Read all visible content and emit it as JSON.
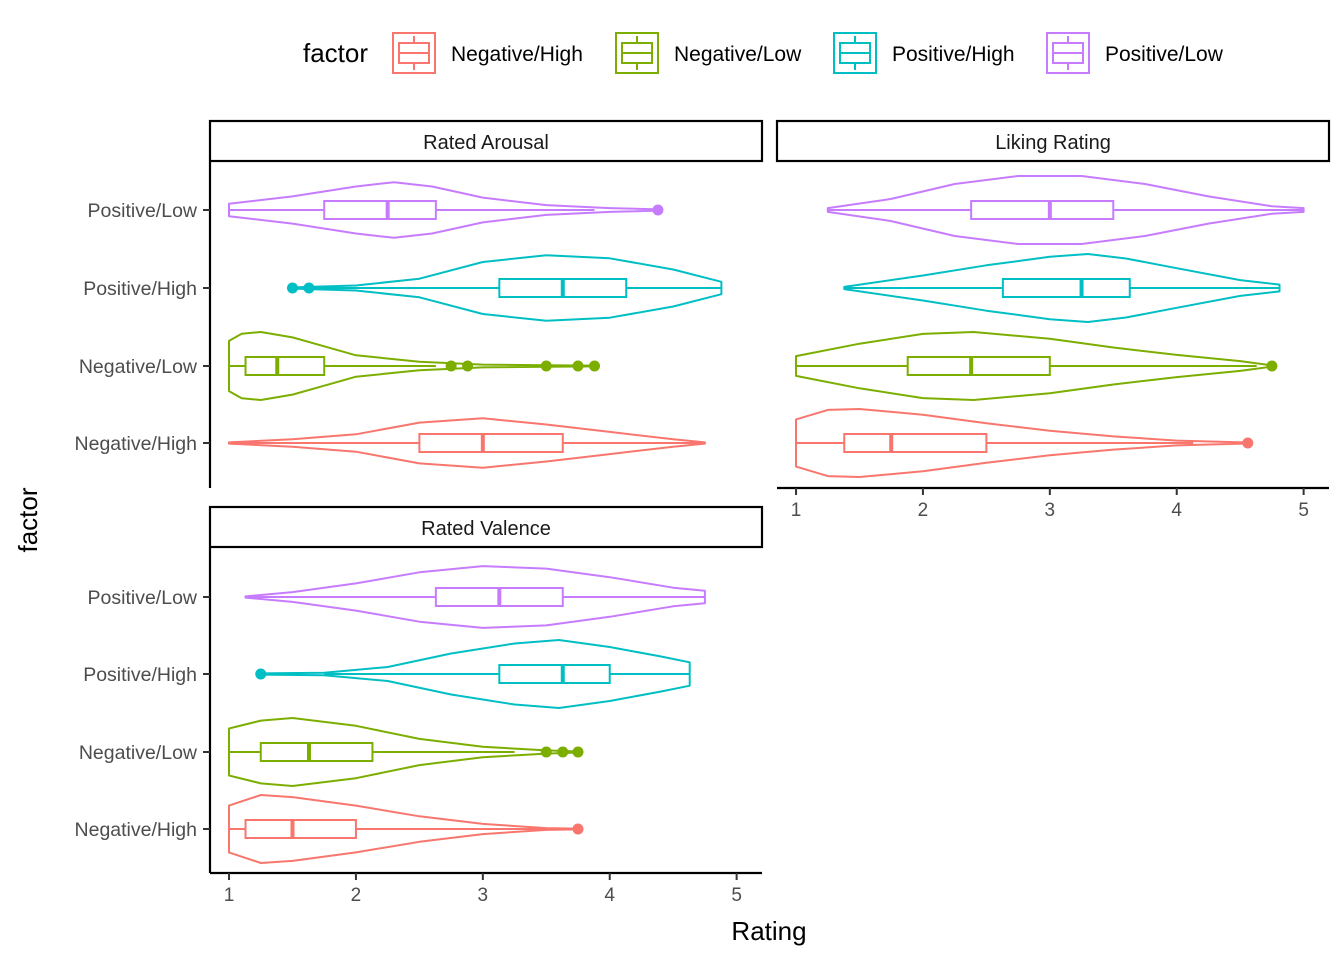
{
  "chart_data": {
    "type": "violin",
    "xlabel": "Rating",
    "ylabel": "factor",
    "xlim": [
      0.85,
      5.2
    ],
    "xticks": [
      1,
      2,
      3,
      4,
      5
    ],
    "categories": [
      "Negative/High",
      "Negative/Low",
      "Positive/High",
      "Positive/Low"
    ],
    "legend": {
      "title": "factor",
      "position": "top",
      "entries": [
        {
          "label": "Negative/High",
          "color": "#F8766D"
        },
        {
          "label": "Negative/Low",
          "color": "#7CAE00"
        },
        {
          "label": "Positive/High",
          "color": "#00BFC4"
        },
        {
          "label": "Positive/Low",
          "color": "#C77CFF"
        }
      ]
    },
    "panels": [
      {
        "title": "Rated Arousal",
        "series": [
          {
            "category": "Negative/High",
            "min": 1.0,
            "q1": 2.5,
            "median": 3.0,
            "q3": 3.63,
            "max": 4.75,
            "outliers": [],
            "density": [
              [
                1.0,
                0.01
              ],
              [
                1.5,
                0.06
              ],
              [
                2.0,
                0.14
              ],
              [
                2.5,
                0.33
              ],
              [
                3.0,
                0.4
              ],
              [
                3.5,
                0.3
              ],
              [
                4.0,
                0.18
              ],
              [
                4.5,
                0.06
              ],
              [
                4.75,
                0.01
              ]
            ]
          },
          {
            "category": "Negative/Low",
            "min": 1.0,
            "q1": 1.13,
            "median": 1.38,
            "q3": 1.75,
            "max": 2.63,
            "outliers": [
              2.75,
              2.88,
              3.5,
              3.75,
              3.88
            ],
            "density": [
              [
                1.0,
                0.7
              ],
              [
                1.1,
                0.9
              ],
              [
                1.25,
                0.95
              ],
              [
                1.5,
                0.8
              ],
              [
                1.75,
                0.55
              ],
              [
                2.0,
                0.3
              ],
              [
                2.5,
                0.12
              ],
              [
                3.0,
                0.04
              ],
              [
                3.5,
                0.02
              ],
              [
                3.88,
                0.01
              ]
            ]
          },
          {
            "category": "Positive/High",
            "min": 1.5,
            "q1": 3.13,
            "median": 3.63,
            "q3": 4.13,
            "max": 4.88,
            "outliers": [
              1.5,
              1.63
            ],
            "density": [
              [
                1.5,
                0.01
              ],
              [
                2.0,
                0.04
              ],
              [
                2.5,
                0.15
              ],
              [
                3.0,
                0.42
              ],
              [
                3.5,
                0.53
              ],
              [
                4.0,
                0.48
              ],
              [
                4.5,
                0.3
              ],
              [
                4.88,
                0.1
              ]
            ]
          },
          {
            "category": "Positive/Low",
            "min": 1.0,
            "q1": 1.75,
            "median": 2.25,
            "q3": 2.63,
            "max": 3.88,
            "outliers": [
              4.38
            ],
            "density": [
              [
                1.0,
                0.1
              ],
              [
                1.5,
                0.22
              ],
              [
                2.0,
                0.38
              ],
              [
                2.3,
                0.45
              ],
              [
                2.6,
                0.38
              ],
              [
                3.0,
                0.2
              ],
              [
                3.5,
                0.08
              ],
              [
                4.0,
                0.03
              ],
              [
                4.38,
                0.01
              ]
            ]
          }
        ]
      },
      {
        "title": "Liking Rating",
        "series": [
          {
            "category": "Negative/High",
            "min": 1.0,
            "q1": 1.38,
            "median": 1.75,
            "q3": 2.5,
            "max": 4.13,
            "outliers": [
              4.56
            ],
            "density": [
              [
                1.0,
                0.5
              ],
              [
                1.25,
                0.7
              ],
              [
                1.5,
                0.72
              ],
              [
                2.0,
                0.6
              ],
              [
                2.5,
                0.42
              ],
              [
                3.0,
                0.26
              ],
              [
                3.5,
                0.14
              ],
              [
                4.0,
                0.05
              ],
              [
                4.56,
                0.01
              ]
            ]
          },
          {
            "category": "Negative/Low",
            "min": 1.0,
            "q1": 1.88,
            "median": 2.38,
            "q3": 3.0,
            "max": 4.63,
            "outliers": [
              4.75
            ],
            "density": [
              [
                1.0,
                0.16
              ],
              [
                1.5,
                0.36
              ],
              [
                2.0,
                0.52
              ],
              [
                2.4,
                0.55
              ],
              [
                3.0,
                0.44
              ],
              [
                3.5,
                0.3
              ],
              [
                4.0,
                0.18
              ],
              [
                4.5,
                0.08
              ],
              [
                4.75,
                0.01
              ]
            ]
          },
          {
            "category": "Positive/High",
            "min": 1.38,
            "q1": 2.63,
            "median": 3.25,
            "q3": 3.63,
            "max": 4.81,
            "outliers": [],
            "density": [
              [
                1.38,
                0.02
              ],
              [
                2.0,
                0.22
              ],
              [
                2.5,
                0.4
              ],
              [
                3.0,
                0.55
              ],
              [
                3.3,
                0.6
              ],
              [
                3.6,
                0.52
              ],
              [
                4.0,
                0.35
              ],
              [
                4.5,
                0.14
              ],
              [
                4.81,
                0.06
              ]
            ]
          },
          {
            "category": "Positive/Low",
            "min": 1.25,
            "q1": 2.38,
            "median": 3.0,
            "q3": 3.5,
            "max": 5.0,
            "outliers": [],
            "density": [
              [
                1.25,
                0.03
              ],
              [
                1.75,
                0.18
              ],
              [
                2.25,
                0.42
              ],
              [
                2.75,
                0.55
              ],
              [
                3.25,
                0.55
              ],
              [
                3.75,
                0.42
              ],
              [
                4.25,
                0.22
              ],
              [
                4.75,
                0.06
              ],
              [
                5.0,
                0.03
              ]
            ]
          }
        ]
      },
      {
        "title": "Rated Valence",
        "series": [
          {
            "category": "Negative/High",
            "min": 1.0,
            "q1": 1.13,
            "median": 1.5,
            "q3": 2.0,
            "max": 3.5,
            "outliers": [
              3.75
            ],
            "density": [
              [
                1.0,
                0.55
              ],
              [
                1.25,
                0.8
              ],
              [
                1.5,
                0.75
              ],
              [
                2.0,
                0.55
              ],
              [
                2.5,
                0.3
              ],
              [
                3.0,
                0.12
              ],
              [
                3.5,
                0.02
              ],
              [
                3.75,
                0.01
              ]
            ]
          },
          {
            "category": "Negative/Low",
            "min": 1.0,
            "q1": 1.25,
            "median": 1.63,
            "q3": 2.13,
            "max": 3.25,
            "outliers": [
              3.5,
              3.63,
              3.75
            ],
            "density": [
              [
                1.0,
                0.45
              ],
              [
                1.25,
                0.6
              ],
              [
                1.5,
                0.65
              ],
              [
                2.0,
                0.5
              ],
              [
                2.5,
                0.25
              ],
              [
                3.0,
                0.1
              ],
              [
                3.5,
                0.03
              ],
              [
                3.75,
                0.01
              ]
            ]
          },
          {
            "category": "Positive/High",
            "min": 1.75,
            "q1": 3.13,
            "median": 3.63,
            "q3": 4.0,
            "max": 4.63,
            "outliers": [
              1.25
            ],
            "density": [
              [
                1.25,
                0.01
              ],
              [
                1.75,
                0.02
              ],
              [
                2.25,
                0.12
              ],
              [
                2.75,
                0.35
              ],
              [
                3.25,
                0.52
              ],
              [
                3.6,
                0.58
              ],
              [
                4.0,
                0.46
              ],
              [
                4.4,
                0.3
              ],
              [
                4.63,
                0.2
              ]
            ]
          },
          {
            "category": "Positive/Low",
            "min": 1.13,
            "q1": 2.63,
            "median": 3.13,
            "q3": 3.63,
            "max": 4.75,
            "outliers": [],
            "density": [
              [
                1.13,
                0.01
              ],
              [
                1.5,
                0.08
              ],
              [
                2.0,
                0.22
              ],
              [
                2.5,
                0.4
              ],
              [
                3.0,
                0.5
              ],
              [
                3.5,
                0.46
              ],
              [
                4.0,
                0.32
              ],
              [
                4.5,
                0.15
              ],
              [
                4.75,
                0.1
              ]
            ]
          }
        ]
      }
    ]
  }
}
